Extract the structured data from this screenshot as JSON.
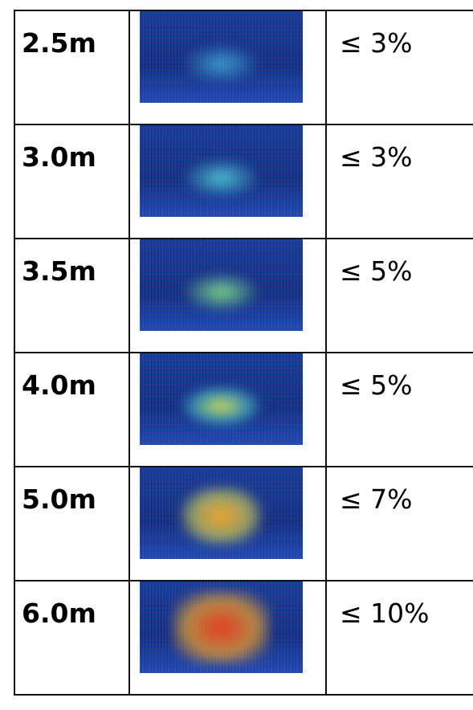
{
  "table": {
    "rows": [
      [
        "2.5m",
        "≤ 3%"
      ],
      [
        "3.0m",
        "≤ 3%"
      ],
      [
        "3.5m",
        "≤ 5%"
      ],
      [
        "4.0m",
        "≤ 5%"
      ],
      [
        "5.0m",
        "≤ 7%"
      ],
      [
        "6.0m",
        "≤ 10%"
      ]
    ]
  }
}
